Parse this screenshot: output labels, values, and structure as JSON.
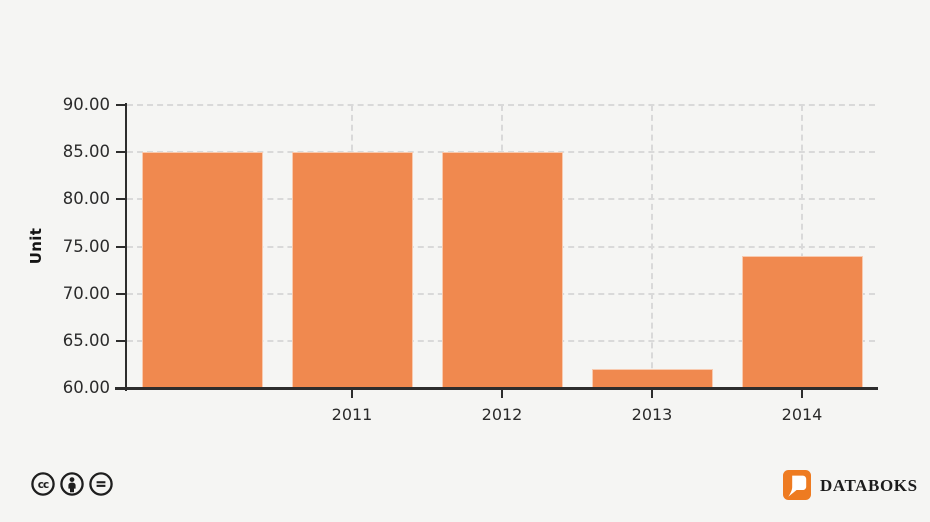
{
  "chart_data": {
    "type": "bar",
    "title": "",
    "categories": [
      "",
      "2011",
      "2012",
      "2013",
      "2014"
    ],
    "values": [
      85,
      85,
      85,
      62,
      74
    ],
    "xlabel": "",
    "ylabel": "Unit",
    "ylim": [
      60,
      90
    ],
    "yticks": [
      60,
      65,
      70,
      75,
      80,
      85,
      90
    ],
    "ytick_labels": [
      "60.00",
      "65.00",
      "70.00",
      "75.00",
      "80.00",
      "85.00",
      "90.00"
    ],
    "grid": "dashed horizontal and vertical, hidden behind bars",
    "legend": "none",
    "bar_color": "#F0894F",
    "axis_color": "#2D2D2D",
    "grid_color": "#D9D9D9",
    "background": "#F5F5F3",
    "text_color": "#2B2B2B"
  },
  "footer": {
    "license": {
      "icons": [
        "cc-icon",
        "attribution-person-icon",
        "no-derivatives-equals-icon"
      ],
      "icon_color": "#1E1E1E"
    },
    "brand": {
      "name": "DATABOKS",
      "logo_color": "#EE7B21",
      "text_color": "#1C1C1C"
    }
  }
}
